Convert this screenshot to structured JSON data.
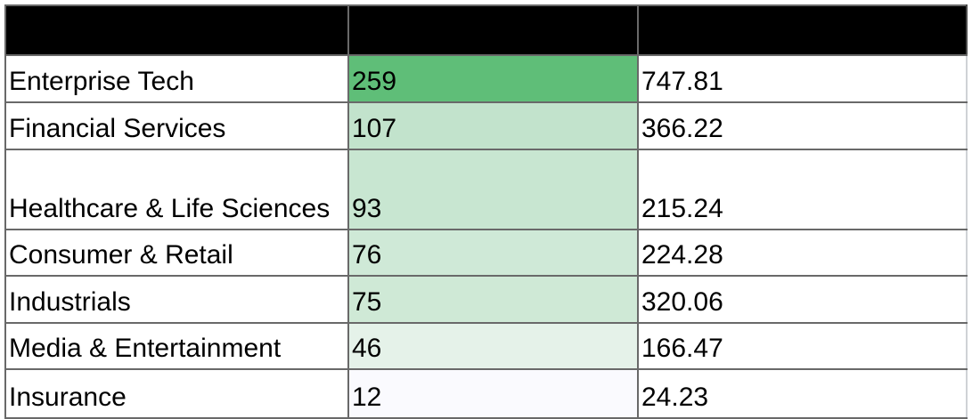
{
  "colors": {
    "header_bg": "#000000",
    "grid_border": "#696969",
    "count_scale_max": "#5FBE78",
    "count_scale_min": "#FAFAFE",
    "cell_text": "#000000"
  },
  "table": {
    "header": {
      "labels": [
        "",
        "",
        ""
      ]
    },
    "rows": [
      {
        "category": "Enterprise Tech",
        "count": "259",
        "value": "747.81",
        "count_bg": "#5FBE78"
      },
      {
        "category": "Financial Services",
        "count": "107",
        "value": "366.22",
        "count_bg": "#C2E3CC"
      },
      {
        "category": "Healthcare & Life Sciences",
        "count": "93",
        "value": "215.24",
        "count_bg": "#C8E6D1"
      },
      {
        "category": "Consumer & Retail",
        "count": "76",
        "value": "224.28",
        "count_bg": "#CFE9D7"
      },
      {
        "category": "Industrials",
        "count": "75",
        "value": "320.06",
        "count_bg": "#CFE9D6"
      },
      {
        "category": "Media & Entertainment",
        "count": "46",
        "value": "166.47",
        "count_bg": "#E5F2E9"
      },
      {
        "category": "Insurance",
        "count": "12",
        "value": "24.23",
        "count_bg": "#FAFAFE"
      }
    ]
  },
  "chart_data": {
    "type": "table",
    "columns": [
      "",
      "",
      ""
    ],
    "rows": [
      [
        "Enterprise Tech",
        259,
        747.81
      ],
      [
        "Financial Services",
        107,
        366.22
      ],
      [
        "Healthcare & Life Sciences",
        93,
        215.24
      ],
      [
        "Consumer & Retail",
        76,
        224.28
      ],
      [
        "Industrials",
        75,
        320.06
      ],
      [
        "Media & Entertainment",
        46,
        166.47
      ],
      [
        "Insurance",
        12,
        24.23
      ]
    ],
    "notes": {
      "count_column_conditional_format": {
        "min_value": 12,
        "min_color": "#FAFAFE",
        "max_value": 259,
        "max_color": "#5FBE78"
      },
      "header_row_background": "#000000"
    }
  }
}
